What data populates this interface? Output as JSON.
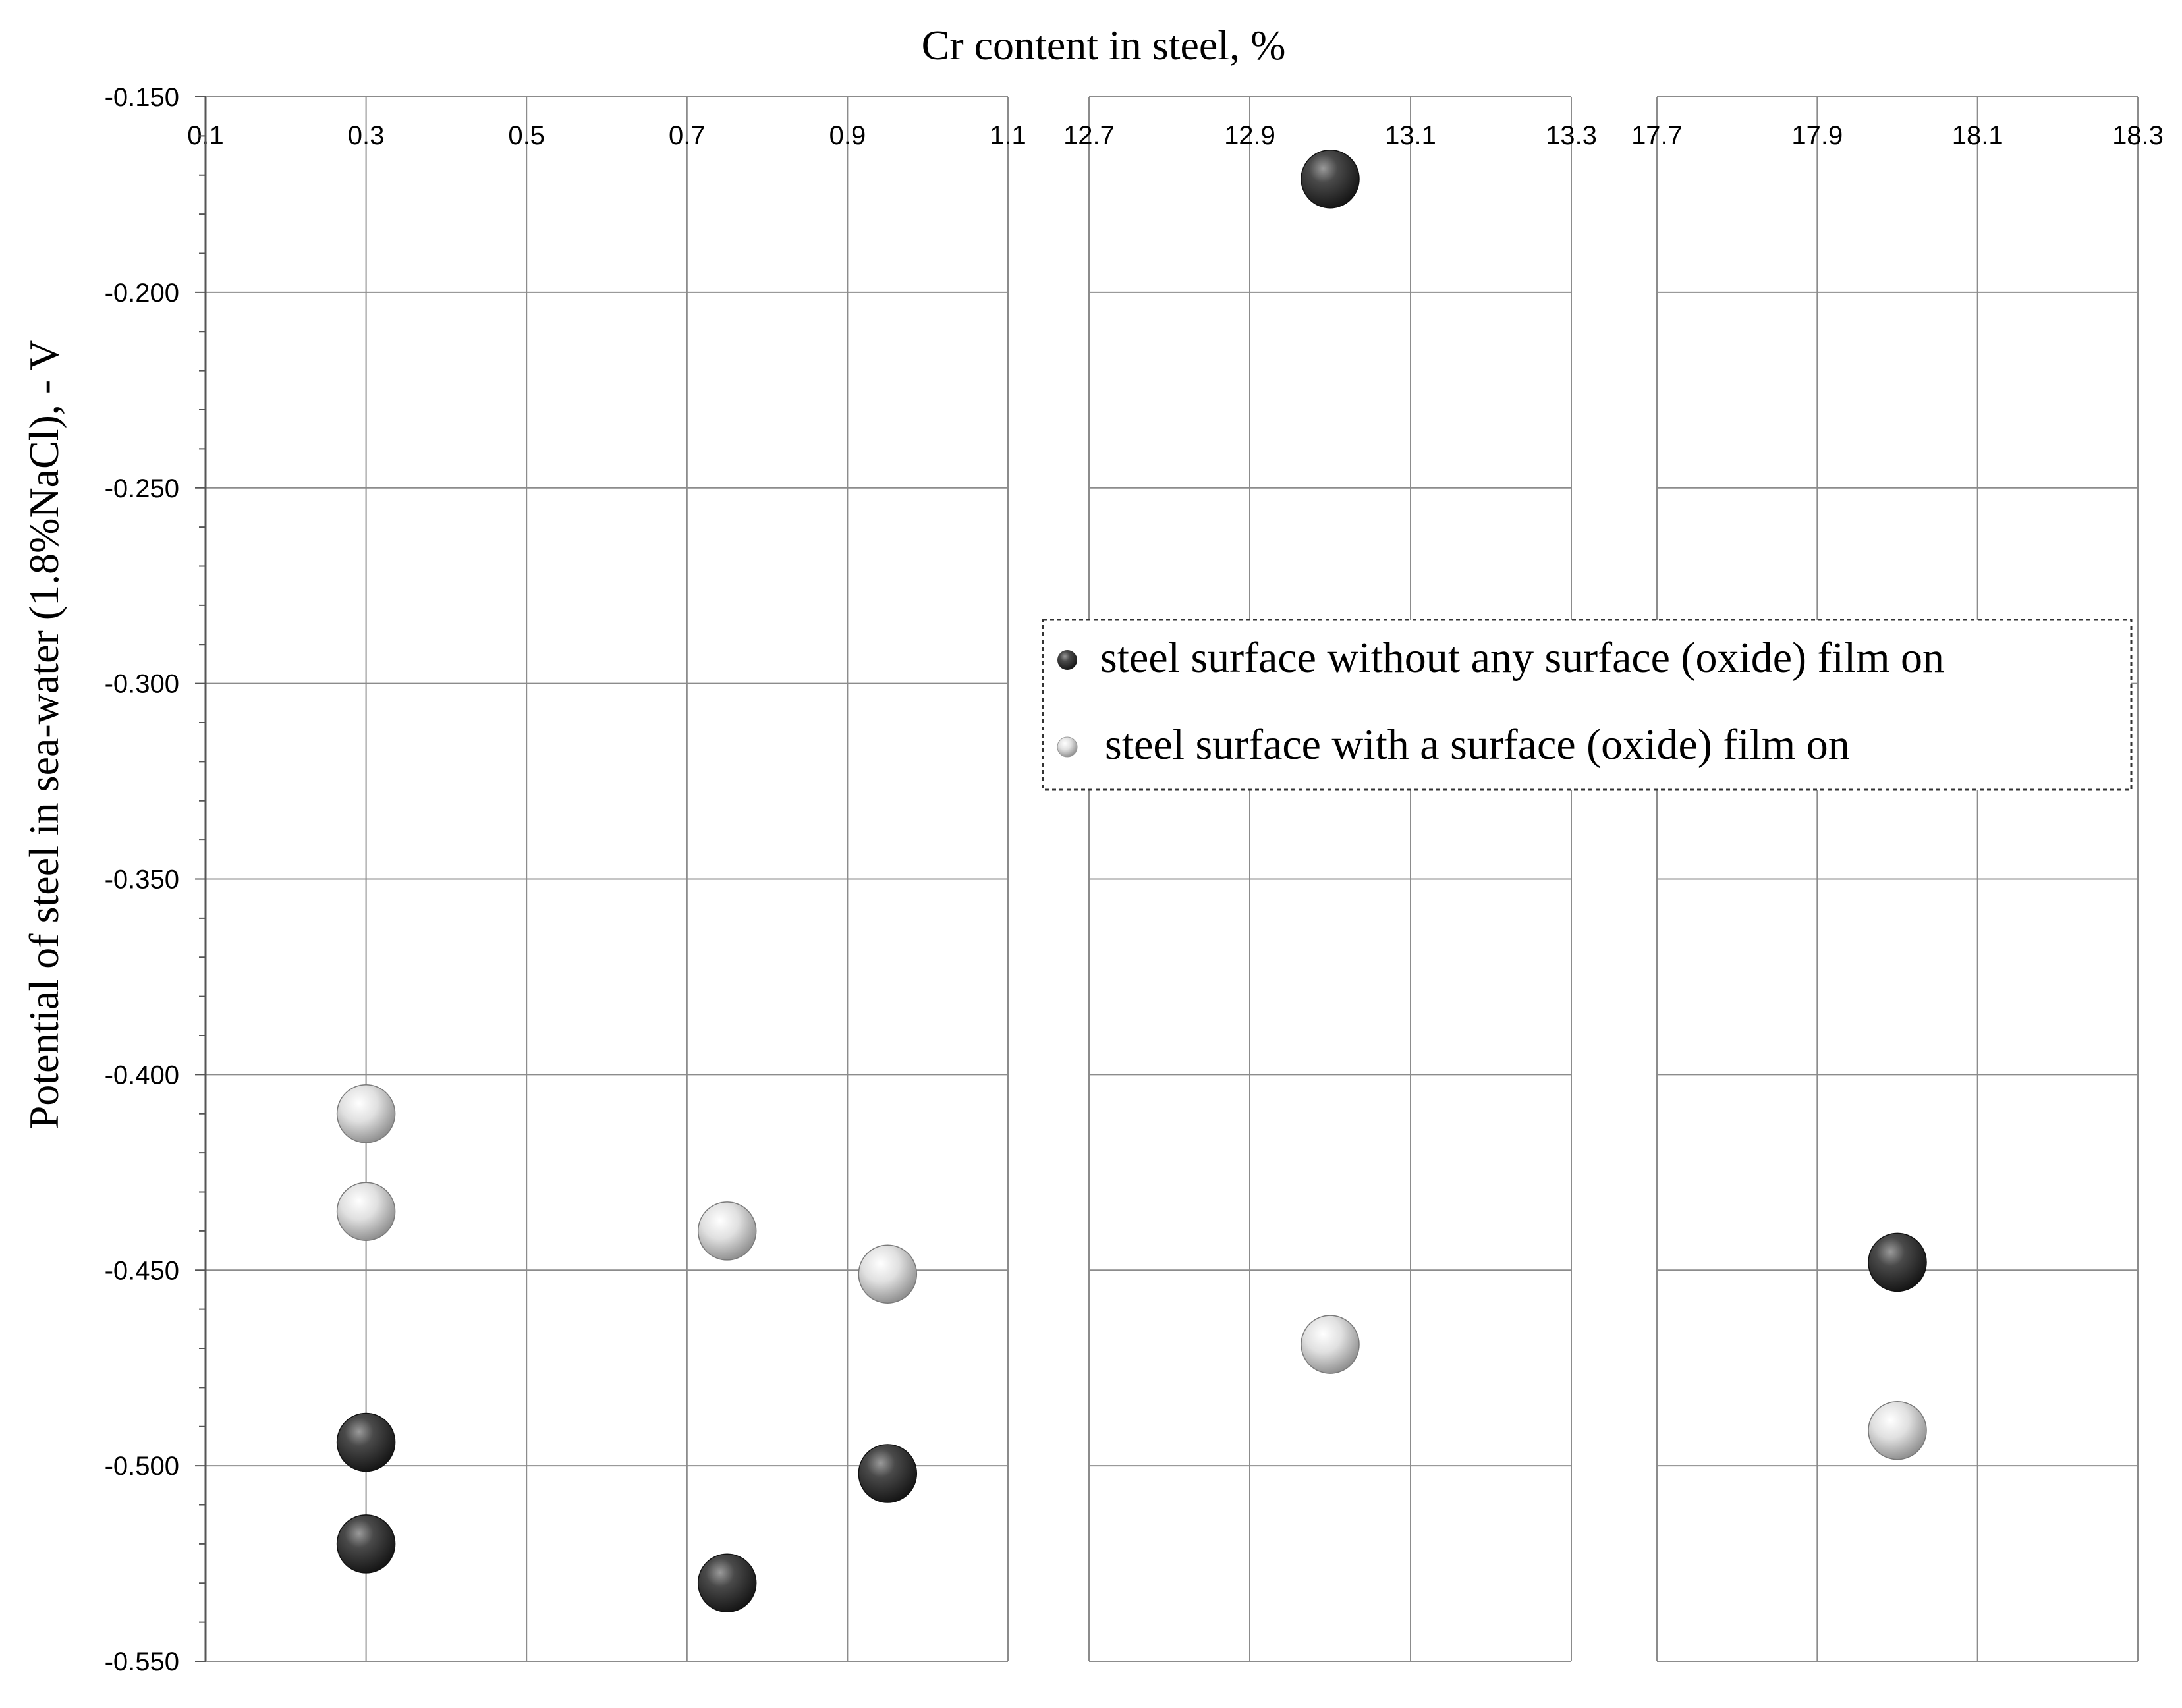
{
  "chart_data": {
    "type": "scatter",
    "title": "",
    "xlabel": "Cr content in steel, %",
    "ylabel": "Potential of steel in sea-water (1.8%NaCl), - V",
    "ylim": [
      -0.55,
      -0.15
    ],
    "yticks": [
      "-0.150",
      "-0.200",
      "-0.250",
      "-0.300",
      "-0.350",
      "-0.400",
      "-0.450",
      "-0.500",
      "-0.550"
    ],
    "grid": true,
    "legend_position": "center-right",
    "panels": [
      {
        "xlim": [
          0.1,
          1.1
        ],
        "xticks": [
          "0.1",
          "0.3",
          "0.5",
          "0.7",
          "0.9",
          "1.1"
        ]
      },
      {
        "xlim": [
          12.7,
          13.3
        ],
        "xticks": [
          "12.7",
          "12.9",
          "13.1",
          "13.3"
        ]
      },
      {
        "xlim": [
          17.7,
          18.3
        ],
        "xticks": [
          "17.7",
          "17.9",
          "18.1",
          "18.3"
        ]
      }
    ],
    "series": [
      {
        "name": "steel surface without any surface (oxide) film on",
        "color": "#2b2b2b",
        "points": [
          {
            "x": 0.3,
            "y": -0.494
          },
          {
            "x": 0.3,
            "y": -0.52
          },
          {
            "x": 0.75,
            "y": -0.53
          },
          {
            "x": 0.95,
            "y": -0.502
          },
          {
            "x": 13.0,
            "y": -0.171
          },
          {
            "x": 18.0,
            "y": -0.448
          }
        ]
      },
      {
        "name": "steel surface with a surface (oxide) film on",
        "color": "#d9d9d9",
        "points": [
          {
            "x": 0.3,
            "y": -0.41
          },
          {
            "x": 0.3,
            "y": -0.435
          },
          {
            "x": 0.75,
            "y": -0.44
          },
          {
            "x": 0.95,
            "y": -0.451
          },
          {
            "x": 13.0,
            "y": -0.469
          },
          {
            "x": 18.0,
            "y": -0.491
          }
        ]
      }
    ]
  }
}
